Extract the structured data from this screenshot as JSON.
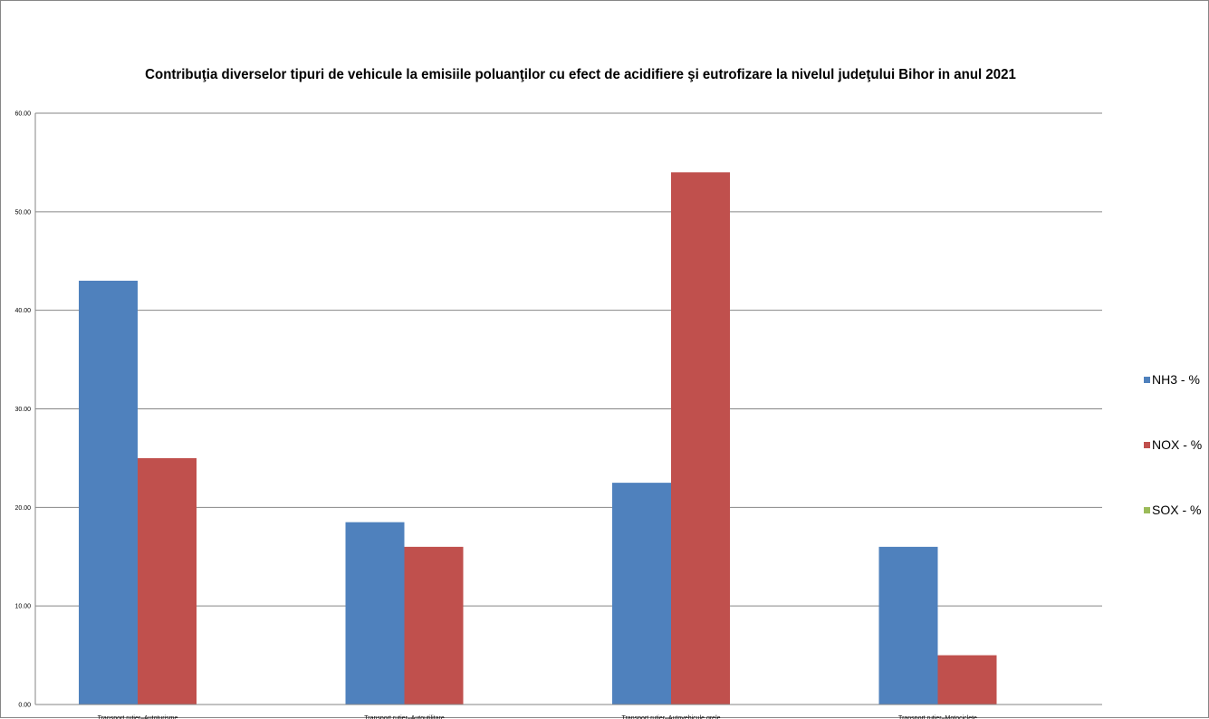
{
  "chart_data": {
    "type": "bar",
    "title": "Contribuţia diverselor tipuri de vehicule la emisiile poluanţilor cu efect de acidifiere şi eutrofizare la nivelul judeţului Bihor in anul 2021",
    "categories": [
      "Transport rutier–Autoturisme",
      "Transport rutier–Autoutilitare",
      "Transport rutier–Autovehicule grele",
      "Transport rutier–Motociclete"
    ],
    "series": [
      {
        "name": "NH3 - %",
        "color": "#4F81BD",
        "values": [
          43.0,
          18.5,
          22.5,
          16.0
        ]
      },
      {
        "name": "NOX - %",
        "color": "#C0504D",
        "values": [
          25.0,
          16.0,
          54.0,
          5.0
        ]
      },
      {
        "name": "SOX - %",
        "color": "#9BBB59",
        "values": [
          0,
          0,
          0,
          0
        ]
      }
    ],
    "y_ticks": [
      "0.00",
      "10.00",
      "20.00",
      "30.00",
      "40.00",
      "50.00",
      "60.00"
    ],
    "ylim": [
      0,
      60
    ],
    "xlabel": "",
    "ylabel": "",
    "grid": true,
    "legend_position": "right"
  }
}
